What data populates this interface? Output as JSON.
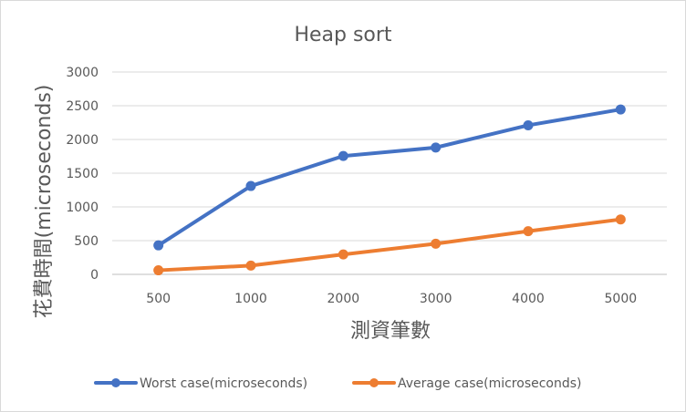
{
  "chart_data": {
    "type": "line",
    "title": "Heap sort",
    "xlabel": "測資筆數",
    "ylabel": "花費時間(microseconds)",
    "categories": [
      "500",
      "1000",
      "2000",
      "3000",
      "4000",
      "5000"
    ],
    "ylim": [
      0,
      3000
    ],
    "yticks": [
      0,
      500,
      1000,
      1500,
      2000,
      2500,
      3000
    ],
    "grid": true,
    "legend_position": "bottom",
    "series": [
      {
        "name": "Worst case(microseconds)",
        "color": "#4472C4",
        "values": [
          430,
          1310,
          1755,
          1880,
          2210,
          2445
        ]
      },
      {
        "name": "Average case(microseconds)",
        "color": "#ED7D31",
        "values": [
          60,
          130,
          295,
          455,
          640,
          815
        ]
      }
    ]
  }
}
